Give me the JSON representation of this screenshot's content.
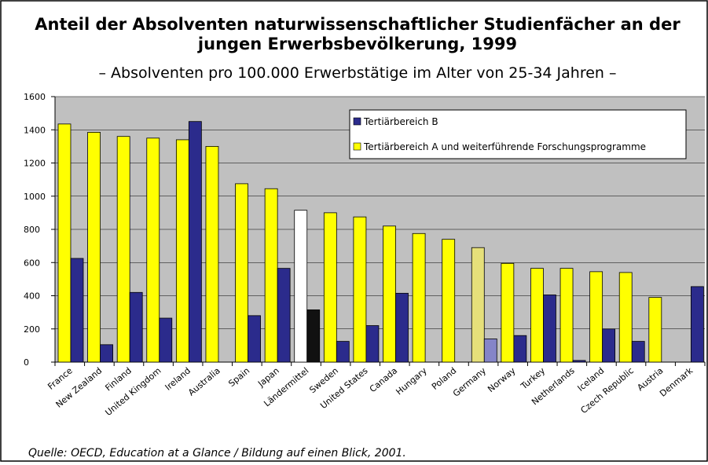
{
  "chart_data": {
    "type": "bar",
    "title": "Anteil der Absolventen naturwissenschaftlicher Studienfächer an der jungen Erwerbsbevölkerung, 1999",
    "title_lines": [
      "Anteil der Absolventen naturwissenschaftlicher Studienfächer an der",
      "jungen Erwerbsbevölkerung, 1999"
    ],
    "subtitle": "– Absolventen pro 100.000 Erwerbstätige im Alter von 25-34 Jahren –",
    "source": "Quelle: OECD, Education at a Glance / Bildung auf einen Blick, 2001.",
    "categories": [
      "France",
      "New Zealand",
      "Finland",
      "United Kingdom",
      "Ireland",
      "Australia",
      "Spain",
      "Japan",
      "Ländermittel",
      "Sweden",
      "United States",
      "Canada",
      "Hungary",
      "Poland",
      "Germany",
      "Norway",
      "Turkey",
      "Netherlands",
      "Iceland",
      "Czech Republic",
      "Austria",
      "Denmark"
    ],
    "series": [
      {
        "name": "Tertiärbereich B",
        "color": "#2b2b8c",
        "colors": [
          "#2b2b8c",
          "#2b2b8c",
          "#2b2b8c",
          "#2b2b8c",
          "#2b2b8c",
          "#2b2b8c",
          "#2b2b8c",
          "#2b2b8c",
          "#111111",
          "#2b2b8c",
          "#2b2b8c",
          "#2b2b8c",
          "#2b2b8c",
          "#2b2b8c",
          "#8585c8",
          "#2b2b8c",
          "#2b2b8c",
          "#2b2b8c",
          "#2b2b8c",
          "#2b2b8c",
          "#2b2b8c",
          "#2b2b8c"
        ],
        "values": [
          625,
          105,
          420,
          265,
          1450,
          null,
          280,
          565,
          315,
          125,
          220,
          415,
          null,
          null,
          140,
          160,
          405,
          10,
          200,
          125,
          null,
          455
        ]
      },
      {
        "name": "Tertiärbereich A und weiterführende Forschungsprogramme",
        "color": "#ffff00",
        "colors": [
          "#ffff00",
          "#ffff00",
          "#ffff00",
          "#ffff00",
          "#ffff00",
          "#ffff00",
          "#ffff00",
          "#ffff00",
          "#ffffff",
          "#ffff00",
          "#ffff00",
          "#ffff00",
          "#ffff00",
          "#ffff00",
          "#e6e07a",
          "#ffff00",
          "#ffff00",
          "#ffff00",
          "#ffff00",
          "#ffff00",
          "#ffff00",
          "#ffff00"
        ],
        "values": [
          1435,
          1385,
          1360,
          1350,
          1340,
          1300,
          1075,
          1045,
          915,
          900,
          875,
          820,
          775,
          740,
          690,
          595,
          565,
          565,
          545,
          540,
          390,
          null
        ]
      }
    ],
    "ylim": [
      0,
      1600
    ],
    "yticks": [
      0,
      200,
      400,
      600,
      800,
      1000,
      1200,
      1400,
      1600
    ],
    "grid": true,
    "legend": "top-right"
  }
}
